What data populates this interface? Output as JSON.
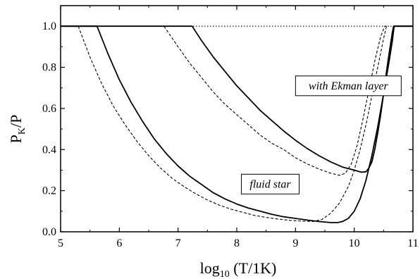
{
  "chart_data": {
    "type": "line",
    "title": "",
    "xlabel": {
      "main": "log",
      "sub": "10",
      "rest": " (T/1K)"
    },
    "ylabel": {
      "main": "P",
      "sub": "K",
      "rest": "/P"
    },
    "xlim": [
      5,
      11
    ],
    "ylim": [
      0,
      1.1
    ],
    "xticks": [
      "5",
      "6",
      "7",
      "8",
      "9",
      "10",
      "11"
    ],
    "yticks": [
      "0.0",
      "0.2",
      "0.4",
      "0.6",
      "0.8",
      "1.0"
    ],
    "grid": false,
    "legend": "none",
    "annotations": [
      {
        "text": "with Ekman layer"
      },
      {
        "text": "fluid star"
      }
    ],
    "series": [
      {
        "style": "dotted",
        "x": [
          5.0,
          11.0
        ],
        "y": [
          1.0,
          1.0
        ]
      },
      {
        "style": "solid",
        "x": [
          5.0,
          7.24,
          7.4,
          7.6,
          7.8,
          8.0,
          8.2,
          8.4,
          8.6,
          8.8,
          9.0,
          9.2,
          9.4,
          9.6,
          9.8,
          10.0,
          10.12,
          10.2,
          10.25,
          10.3,
          10.35,
          10.4,
          10.45,
          10.5,
          10.55,
          10.6,
          10.65,
          10.67,
          11.0
        ],
        "y": [
          1.0,
          1.0,
          0.93,
          0.85,
          0.78,
          0.71,
          0.65,
          0.59,
          0.54,
          0.49,
          0.445,
          0.405,
          0.37,
          0.34,
          0.315,
          0.3,
          0.29,
          0.292,
          0.31,
          0.34,
          0.4,
          0.48,
          0.57,
          0.67,
          0.78,
          0.88,
          0.97,
          1.0,
          1.0
        ]
      },
      {
        "style": "dashed",
        "x": [
          6.76,
          7.0,
          7.2,
          7.4,
          7.6,
          7.8,
          8.0,
          8.2,
          8.4,
          8.6,
          8.8,
          9.0,
          9.2,
          9.4,
          9.6,
          9.75,
          9.85,
          9.95,
          10.05,
          10.15,
          10.25,
          10.35,
          10.45,
          10.52,
          10.55
        ],
        "y": [
          1.0,
          0.9,
          0.82,
          0.75,
          0.68,
          0.62,
          0.57,
          0.52,
          0.47,
          0.43,
          0.4,
          0.36,
          0.33,
          0.305,
          0.285,
          0.275,
          0.285,
          0.33,
          0.42,
          0.55,
          0.69,
          0.83,
          0.95,
          1.0,
          1.0
        ]
      },
      {
        "style": "solid",
        "x": [
          5.0,
          5.62,
          5.8,
          6.0,
          6.2,
          6.4,
          6.6,
          6.8,
          7.0,
          7.2,
          7.4,
          7.6,
          7.8,
          8.0,
          8.2,
          8.4,
          8.6,
          8.8,
          9.0,
          9.2,
          9.4,
          9.6,
          9.72,
          9.8,
          9.9,
          10.0,
          10.1,
          10.2,
          10.3,
          10.4,
          10.5,
          10.6,
          10.65,
          10.68,
          11.0
        ],
        "y": [
          1.0,
          1.0,
          0.87,
          0.74,
          0.63,
          0.535,
          0.45,
          0.38,
          0.32,
          0.27,
          0.23,
          0.19,
          0.16,
          0.135,
          0.115,
          0.1,
          0.085,
          0.073,
          0.065,
          0.057,
          0.05,
          0.045,
          0.045,
          0.05,
          0.065,
          0.1,
          0.16,
          0.25,
          0.37,
          0.51,
          0.67,
          0.84,
          0.93,
          1.0,
          1.0
        ]
      },
      {
        "style": "dashed",
        "x": [
          5.3,
          5.5,
          5.7,
          5.9,
          6.1,
          6.3,
          6.5,
          6.7,
          6.9,
          7.1,
          7.3,
          7.5,
          7.7,
          7.9,
          8.1,
          8.3,
          8.5,
          8.7,
          8.9,
          9.1,
          9.3,
          9.45,
          9.6,
          9.75,
          9.9,
          10.0,
          10.1,
          10.2,
          10.3,
          10.4,
          10.5,
          10.55
        ],
        "y": [
          1.0,
          0.85,
          0.72,
          0.61,
          0.52,
          0.44,
          0.37,
          0.31,
          0.26,
          0.22,
          0.185,
          0.155,
          0.13,
          0.11,
          0.095,
          0.08,
          0.07,
          0.062,
          0.056,
          0.052,
          0.05,
          0.06,
          0.09,
          0.14,
          0.22,
          0.3,
          0.4,
          0.52,
          0.66,
          0.8,
          0.94,
          1.0
        ]
      }
    ]
  }
}
